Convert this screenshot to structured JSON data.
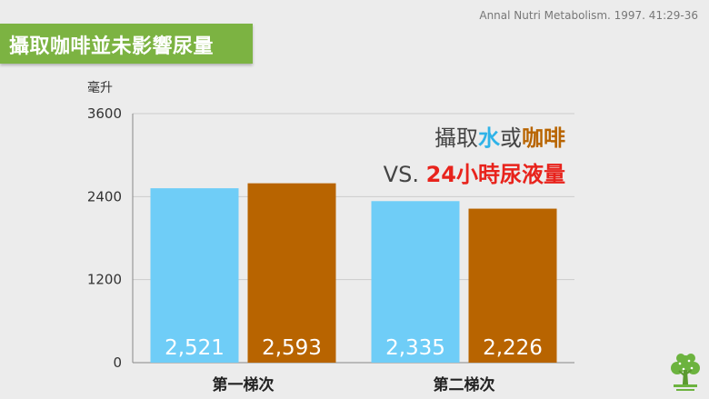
{
  "slide": {
    "title": "攝取咖啡並未影響尿量",
    "citation": "Annal Nutri Metabolism. 1997. 41:29-36"
  },
  "legend": {
    "line1": {
      "prefix": "攝取",
      "water": "水",
      "or": "或",
      "coffee": "咖啡"
    },
    "line2": {
      "prefix": "VS. ",
      "highlight": "24小時尿液量"
    }
  },
  "colors": {
    "banner": "#7cb342",
    "water": "#6fcdf7",
    "coffee": "#b86400",
    "highlight": "#e8231c"
  },
  "chart_data": {
    "type": "bar",
    "ylabel": "毫升",
    "ylim": [
      0,
      3600
    ],
    "yticks": [
      "0",
      "1200",
      "2400",
      "3600"
    ],
    "grid": true,
    "categories": [
      "第一梯次",
      "第二梯次"
    ],
    "series": [
      {
        "name": "水",
        "color": "#6fcdf7",
        "values": [
          2521,
          2335
        ],
        "labels": [
          "2,521",
          "2,335"
        ]
      },
      {
        "name": "咖啡",
        "color": "#b86400",
        "values": [
          2593,
          2226
        ],
        "labels": [
          "2,593",
          "2,226"
        ]
      }
    ]
  }
}
